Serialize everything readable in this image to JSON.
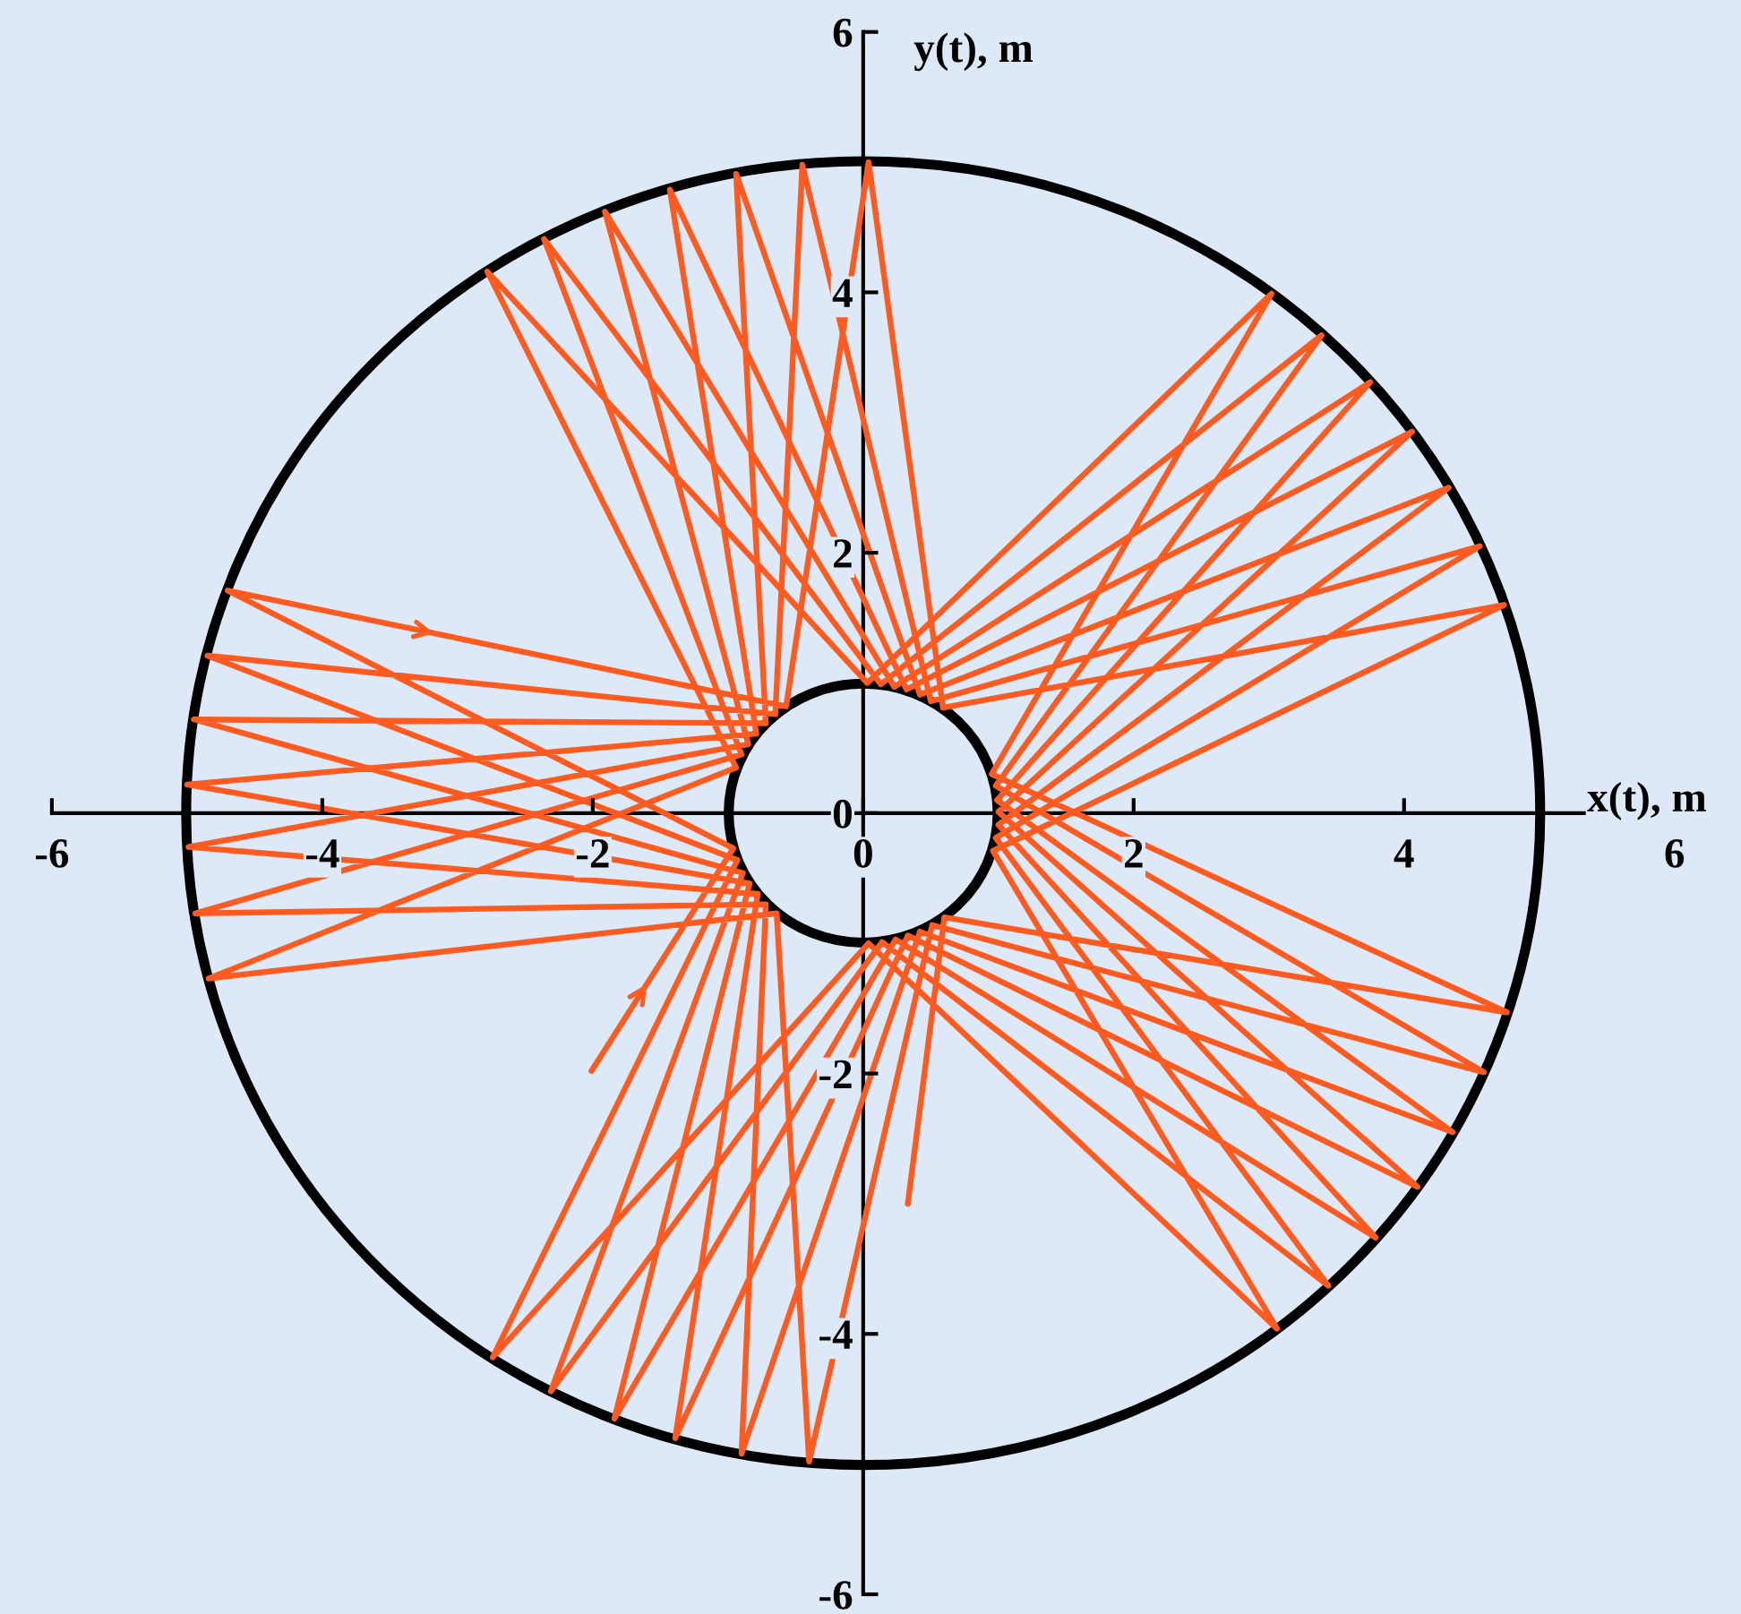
{
  "chart_data": {
    "type": "line",
    "xlabel": "x(t), m",
    "ylabel": "y(t), m",
    "xlim": [
      -6,
      6
    ],
    "ylim": [
      -6,
      6
    ],
    "xticks": [
      -6,
      -4,
      -2,
      0,
      2,
      4,
      6
    ],
    "yticks": [
      -6,
      -4,
      -2,
      0,
      2,
      4,
      6
    ],
    "series": [
      {
        "color": "#ff5a1f",
        "x": [
          -2.01,
          -0.96,
          -4.7,
          -0.57,
          0.04,
          0.59,
          4.74,
          0.96,
          3.06,
          0.04,
          -2.74,
          -0.93,
          -4.85,
          -0.65,
          -0.45,
          0.5,
          4.56,
          0.98,
          3.44,
          0.14,
          -2.31,
          -0.89,
          -4.95,
          -0.72,
          -0.94,
          0.42,
          4.33,
          1.0,
          3.79,
          0.24,
          -1.84,
          -0.84,
          -5.0,
          -0.79,
          -1.43,
          0.32,
          4.06,
          1.0,
          4.1,
          0.33,
          -1.39,
          -0.78,
          -4.99,
          -0.85,
          -1.91,
          0.23,
          3.75,
          0.99,
          4.36,
          0.42,
          -0.9,
          -0.72,
          -4.94,
          -0.9,
          -2.36,
          0.13,
          3.39,
          0.98,
          4.59,
          0.51,
          -0.4,
          -0.64,
          -4.84,
          -0.94,
          -2.78,
          0.03,
          3.02,
          0.95,
          4.76,
          0.6,
          0.33
        ],
        "values": [
          -1.98,
          -0.27,
          1.71,
          0.82,
          5.0,
          0.81,
          1.6,
          -0.29,
          -3.96,
          -1.0,
          -4.18,
          -0.36,
          1.21,
          0.76,
          4.98,
          0.86,
          2.05,
          -0.19,
          -3.63,
          -0.99,
          -4.44,
          -0.46,
          0.72,
          0.69,
          4.91,
          0.91,
          2.5,
          -0.09,
          -3.26,
          -0.97,
          -4.65,
          -0.54,
          0.22,
          0.61,
          4.79,
          0.95,
          2.93,
          0.01,
          -2.87,
          -0.94,
          -4.8,
          -0.62,
          -0.26,
          0.53,
          4.62,
          0.97,
          3.31,
          0.1,
          -2.45,
          -0.91,
          -4.92,
          -0.7,
          -0.77,
          0.45,
          4.41,
          0.99,
          3.67,
          0.21,
          -1.99,
          -0.86,
          -4.98,
          -0.77,
          -1.27,
          0.35,
          4.16,
          1.0,
          3.99,
          0.3,
          -1.53,
          -0.8,
          -3.0
        ]
      }
    ]
  }
}
